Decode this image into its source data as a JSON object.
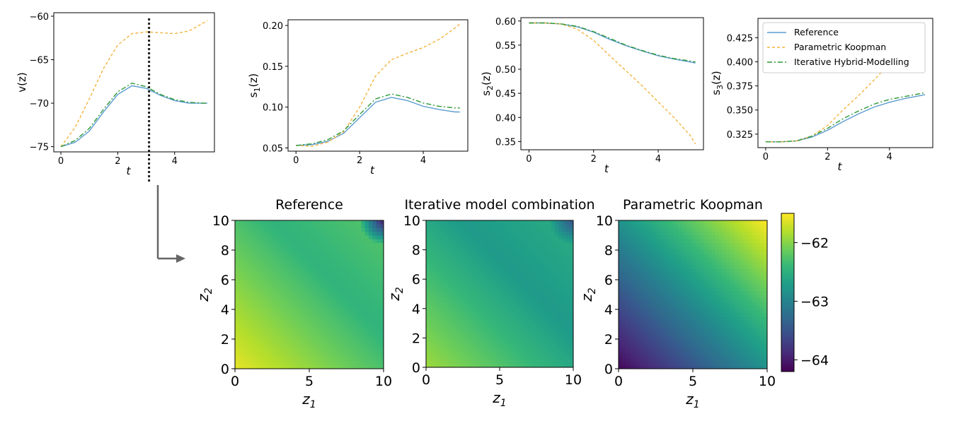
{
  "colors": {
    "reference": "#5b9bd0",
    "koopman": "#f2b33d",
    "hybrid": "#2c9a36",
    "viridis": [
      "#440154",
      "#482878",
      "#3e4989",
      "#31688e",
      "#26828e",
      "#1f9e89",
      "#35b779",
      "#6ece58",
      "#b5de2b",
      "#fde725"
    ]
  },
  "chart_data": [
    {
      "type": "line",
      "ylabel": "v(z)",
      "xlabel": "t",
      "xlim": [
        -0.25,
        5.4
      ],
      "ylim": [
        -75.6,
        -59.6
      ],
      "xticks": [
        "0",
        "2",
        "4"
      ],
      "xtick_values": [
        0,
        2,
        4
      ],
      "yticks": [
        "−75",
        "−70",
        "−65",
        "−60"
      ],
      "ytick_values": [
        -75,
        -70,
        -65,
        -60
      ],
      "marker_line_t": 3.1,
      "series": [
        {
          "name": "Reference",
          "style": "solid",
          "x": [
            0,
            0.5,
            1,
            1.5,
            2,
            2.5,
            3,
            3.5,
            4,
            4.5,
            5,
            5.15
          ],
          "y": [
            -75,
            -74.5,
            -73.2,
            -71,
            -69,
            -68,
            -68.3,
            -69.1,
            -69.7,
            -70,
            -70,
            -70
          ]
        },
        {
          "name": "Parametric Koopman",
          "style": "dashed",
          "x": [
            0,
            0.5,
            1,
            1.5,
            2,
            2.5,
            3,
            3.5,
            4,
            4.5,
            5,
            5.15
          ],
          "y": [
            -75,
            -72.8,
            -69.5,
            -66,
            -63.3,
            -62,
            -61.8,
            -61.9,
            -62,
            -61.7,
            -60.8,
            -60.5
          ]
        },
        {
          "name": "Iterative Hybrid-Modelling",
          "style": "dashdot",
          "x": [
            0,
            0.5,
            1,
            1.5,
            2,
            2.5,
            3,
            3.5,
            4,
            4.5,
            5,
            5.15
          ],
          "y": [
            -75,
            -74.3,
            -72.9,
            -70.7,
            -68.7,
            -67.7,
            -68.1,
            -69,
            -69.6,
            -69.9,
            -70,
            -70
          ]
        }
      ]
    },
    {
      "type": "line",
      "ylabel": "s1(z)",
      "xlabel": "t",
      "xlim": [
        -0.25,
        5.4
      ],
      "ylim": [
        0.046,
        0.207
      ],
      "xticks": [
        "0",
        "2",
        "4"
      ],
      "xtick_values": [
        0,
        2,
        4
      ],
      "yticks": [
        "0.05",
        "0.10",
        "0.15",
        "0.20"
      ],
      "ytick_values": [
        0.05,
        0.1,
        0.15,
        0.2
      ],
      "series": [
        {
          "name": "Reference",
          "style": "solid",
          "x": [
            0,
            0.5,
            1,
            1.5,
            2,
            2.5,
            3,
            3.5,
            4,
            4.5,
            5,
            5.15
          ],
          "y": [
            0.053,
            0.054,
            0.058,
            0.068,
            0.087,
            0.106,
            0.112,
            0.108,
            0.101,
            0.097,
            0.094,
            0.094
          ]
        },
        {
          "name": "Parametric Koopman",
          "style": "dashed",
          "x": [
            0,
            0.5,
            1,
            1.5,
            2,
            2.5,
            3,
            3.5,
            4,
            4.5,
            5,
            5.15
          ],
          "y": [
            0.053,
            0.052,
            0.057,
            0.07,
            0.1,
            0.138,
            0.158,
            0.166,
            0.173,
            0.183,
            0.197,
            0.202
          ]
        },
        {
          "name": "Iterative Hybrid-Modelling",
          "style": "dashdot",
          "x": [
            0,
            0.5,
            1,
            1.5,
            2,
            2.5,
            3,
            3.5,
            4,
            4.5,
            5,
            5.15
          ],
          "y": [
            0.053,
            0.055,
            0.06,
            0.071,
            0.091,
            0.11,
            0.116,
            0.112,
            0.105,
            0.101,
            0.099,
            0.099
          ]
        }
      ]
    },
    {
      "type": "line",
      "ylabel": "s2(z)",
      "xlabel": "t",
      "xlim": [
        -0.25,
        5.4
      ],
      "ylim": [
        0.333,
        0.607
      ],
      "xticks": [
        "0",
        "2",
        "4"
      ],
      "xtick_values": [
        0,
        2,
        4
      ],
      "yticks": [
        "0.35",
        "0.40",
        "0.45",
        "0.50",
        "0.55",
        "0.60"
      ],
      "ytick_values": [
        0.35,
        0.4,
        0.45,
        0.5,
        0.55,
        0.6
      ],
      "series": [
        {
          "name": "Reference",
          "style": "solid",
          "x": [
            0,
            0.5,
            1,
            1.5,
            2,
            2.5,
            3,
            3.5,
            4,
            4.5,
            5,
            5.15
          ],
          "y": [
            0.596,
            0.596,
            0.594,
            0.588,
            0.577,
            0.562,
            0.549,
            0.538,
            0.528,
            0.521,
            0.515,
            0.513
          ]
        },
        {
          "name": "Parametric Koopman",
          "style": "dashed",
          "x": [
            0,
            0.5,
            1,
            1.5,
            2,
            2.5,
            3,
            3.5,
            4,
            4.5,
            5,
            5.15
          ],
          "y": [
            0.596,
            0.596,
            0.594,
            0.583,
            0.56,
            0.528,
            0.497,
            0.466,
            0.432,
            0.399,
            0.362,
            0.345
          ]
        },
        {
          "name": "Iterative Hybrid-Modelling",
          "style": "dashdot",
          "x": [
            0,
            0.5,
            1,
            1.5,
            2,
            2.5,
            3,
            3.5,
            4,
            4.5,
            5,
            5.15
          ],
          "y": [
            0.596,
            0.596,
            0.594,
            0.589,
            0.578,
            0.564,
            0.55,
            0.539,
            0.529,
            0.522,
            0.517,
            0.515
          ]
        }
      ]
    },
    {
      "type": "line",
      "ylabel": "s3(z)",
      "xlabel": "t",
      "xlim": [
        -0.25,
        5.4
      ],
      "ylim": [
        0.311,
        0.445
      ],
      "xticks": [
        "0",
        "2",
        "4"
      ],
      "xtick_values": [
        0,
        2,
        4
      ],
      "yticks": [
        "0.325",
        "0.350",
        "0.375",
        "0.400",
        "0.425"
      ],
      "ytick_values": [
        0.325,
        0.35,
        0.375,
        0.4,
        0.425
      ],
      "legend_position": "top-right",
      "series": [
        {
          "name": "Reference",
          "style": "solid",
          "x": [
            0,
            0.5,
            1,
            1.5,
            2,
            2.5,
            3,
            3.5,
            4,
            4.5,
            5,
            5.15
          ],
          "y": [
            0.317,
            0.317,
            0.318,
            0.322,
            0.329,
            0.338,
            0.346,
            0.353,
            0.358,
            0.362,
            0.365,
            0.366
          ]
        },
        {
          "name": "Parametric Koopman",
          "style": "dashed",
          "x": [
            0,
            0.5,
            1,
            1.5,
            2,
            2.5,
            3,
            3.5,
            4,
            4.5,
            5,
            5.15
          ],
          "y": [
            0.317,
            0.317,
            0.318,
            0.323,
            0.334,
            0.35,
            0.365,
            0.381,
            0.398,
            0.414,
            0.432,
            0.439
          ]
        },
        {
          "name": "Iterative Hybrid-Modelling",
          "style": "dashdot",
          "x": [
            0,
            0.5,
            1,
            1.5,
            2,
            2.5,
            3,
            3.5,
            4,
            4.5,
            5,
            5.15
          ],
          "y": [
            0.317,
            0.317,
            0.318,
            0.323,
            0.331,
            0.341,
            0.349,
            0.356,
            0.361,
            0.364,
            0.367,
            0.368
          ]
        }
      ]
    },
    {
      "type": "heatmap",
      "title": "Reference",
      "xlabel": "z1",
      "ylabel": "z2",
      "xlim": [
        0,
        10
      ],
      "ylim": [
        0,
        10
      ],
      "xticks": [
        "0",
        "5",
        "10"
      ],
      "yticks": [
        "0",
        "2",
        "4",
        "6",
        "8",
        "10"
      ],
      "value_model": "v = -62.45 - 0.075*(z1+z2) at low z1+z2, linear decrease to about -62.6 at z1=z2=0 corner low-z, about -62.9 at (10,10); dark patch near -64 at top-right corner",
      "corner_values": {
        "z1_0_z2_0": -62.45,
        "z1_10_z2_0": -62.2,
        "z1_0_z2_10": -62.2,
        "z1_10_z2_10": -64.0
      }
    },
    {
      "type": "heatmap",
      "title": "Iterative model combination",
      "xlabel": "z1",
      "ylabel": "z2",
      "xlim": [
        0,
        10
      ],
      "ylim": [
        0,
        10
      ],
      "xticks": [
        "0",
        "5",
        "10"
      ],
      "yticks": [
        "0",
        "2",
        "4",
        "6",
        "8",
        "10"
      ],
      "corner_values": {
        "z1_0_z2_0": -62.3,
        "z1_10_z2_0": -62.6,
        "z1_0_z2_10": -62.6,
        "z1_10_z2_10": -63.5
      }
    },
    {
      "type": "heatmap",
      "title": "Parametric Koopman",
      "xlabel": "z1",
      "ylabel": "z2",
      "xlim": [
        0,
        10
      ],
      "ylim": [
        0,
        10
      ],
      "xticks": [
        "0",
        "5",
        "10"
      ],
      "yticks": [
        "0",
        "2",
        "4",
        "6",
        "8",
        "10"
      ],
      "corner_values": {
        "z1_0_z2_0": -64.1,
        "z1_10_z2_0": -63.0,
        "z1_0_z2_10": -63.0,
        "z1_10_z2_10": -61.5
      }
    },
    {
      "type": "colorbar",
      "range": [
        -64.2,
        -61.5
      ],
      "ticks": [
        "−62",
        "−63",
        "−64"
      ],
      "tick_values": [
        -62,
        -63,
        -64
      ]
    }
  ]
}
